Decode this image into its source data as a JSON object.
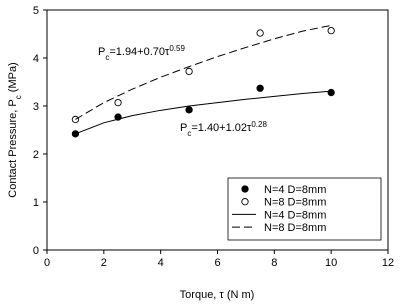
{
  "chart_data": {
    "type": "scatter",
    "xlabel": "Torque, τ (N m)",
    "ylabel": [
      "Contact Pressure, P",
      "c",
      " (MPa)"
    ],
    "annotations": [
      [
        "P",
        "c",
        "=1.94+0.70τ",
        "0.59"
      ],
      [
        "P",
        "c",
        "=1.40+1.02τ",
        "0.28"
      ]
    ],
    "xlim": [
      0,
      12
    ],
    "xticks": [
      0,
      2,
      4,
      6,
      8,
      10,
      12
    ],
    "ylim": [
      0,
      5
    ],
    "yticks": [
      0,
      1,
      2,
      3,
      4,
      5
    ],
    "legend": "lower right",
    "series": [
      {
        "name": "N=4 D=8mm",
        "type": "scatter",
        "marker": "filled",
        "color": "#000000",
        "x": [
          1,
          2.5,
          5,
          7.5,
          10
        ],
        "values": [
          2.42,
          2.77,
          2.92,
          3.37,
          3.28
        ]
      },
      {
        "name": "N=8 D=8mm",
        "type": "scatter",
        "marker": "open",
        "color": "#000000",
        "x": [
          1,
          2.5,
          5,
          7.5,
          10
        ],
        "values": [
          2.72,
          3.07,
          3.72,
          4.52,
          4.57
        ]
      },
      {
        "name": "N=4 D=8mm",
        "type": "line",
        "linestyle": "solid",
        "color": "#000000",
        "x": [
          1,
          2,
          3,
          4,
          5,
          6,
          7,
          8,
          9,
          10
        ],
        "values": [
          2.42,
          2.65,
          2.8,
          2.91,
          3.0,
          3.07,
          3.14,
          3.2,
          3.26,
          3.31
        ]
      },
      {
        "name": "N=8 D=8mm",
        "type": "line",
        "linestyle": "dashed",
        "color": "#000000",
        "x": [
          1,
          2,
          3,
          4,
          5,
          6,
          7,
          8,
          9,
          10
        ],
        "values": [
          2.72,
          3.07,
          3.35,
          3.6,
          3.82,
          4.03,
          4.22,
          4.4,
          4.56,
          4.68
        ]
      }
    ]
  }
}
